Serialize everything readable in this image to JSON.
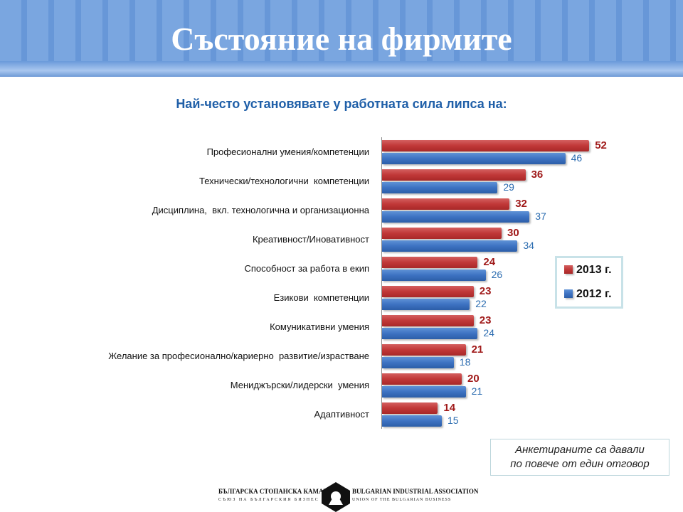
{
  "title": "Състояние на фирмите",
  "chart_data": {
    "type": "bar",
    "orientation": "horizontal",
    "title": "Най-често установявате у работната сила липса на:",
    "categories": [
      "Професионални умения/компетенции",
      "Технически/технологични  компетенции",
      "Дисциплина,  вкл. технологична и организационна",
      "Креативност/Иновативност",
      "Способност за работа в екип",
      "Езикови  компетенции",
      "Комуникативни умения",
      "Желание за професионално/кариерно  развитие/израстване",
      "Мениджърски/лидерски  умения",
      "Адаптивност"
    ],
    "series": [
      {
        "name": "2013 г.",
        "color": "#c03838",
        "values": [
          52,
          36,
          32,
          30,
          24,
          23,
          23,
          21,
          20,
          14
        ]
      },
      {
        "name": "2012 г.",
        "color": "#3d72c2",
        "values": [
          46,
          29,
          37,
          34,
          26,
          22,
          24,
          18,
          21,
          15
        ]
      }
    ],
    "legend": "right",
    "grid": false
  },
  "note": [
    "Анкетираните са давали",
    "по повече от един отговор"
  ],
  "logo": {
    "left_top": "БЪЛГАРСКА СТОПАНСКА КАМАРА",
    "left_bottom": "СЪЮЗ НА БЪЛГАРСКИЯ БИЗНЕС",
    "right_top": "BULGARIAN INDUSTRIAL ASSOCIATION",
    "right_bottom": "UNION OF THE BULGARIAN BUSINESS"
  }
}
